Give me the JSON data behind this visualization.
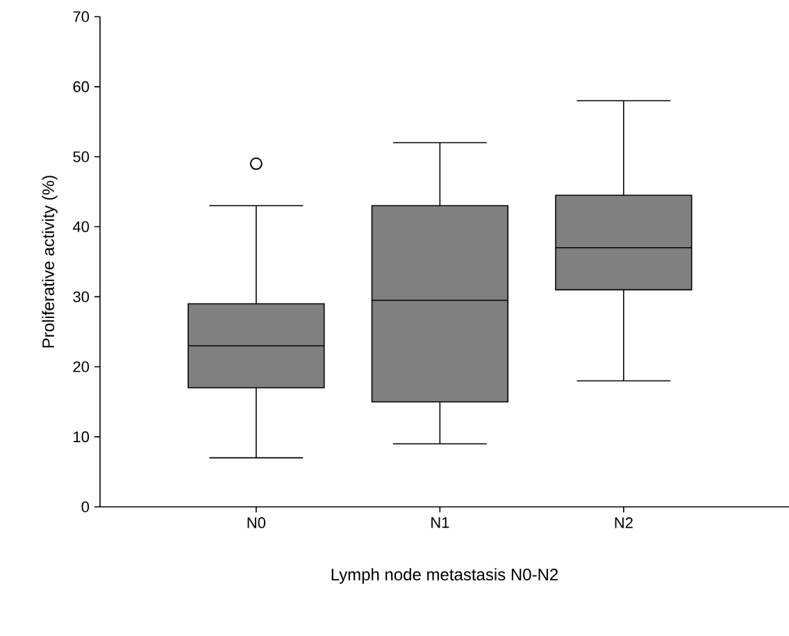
{
  "chart_data": {
    "type": "box",
    "xlabel": "Lymph node metastasis N0-N2",
    "ylabel": "Proliferative activity (%)",
    "categories": [
      "N0",
      "N1",
      "N2"
    ],
    "color": "#808080",
    "marker": "circle",
    "boxes": [
      {
        "low": 7,
        "q1": 17,
        "median": 23,
        "q3": 29,
        "high": 43,
        "outliers": [
          49
        ]
      },
      {
        "low": 9,
        "q1": 15,
        "median": 29.5,
        "q3": 43,
        "high": 52
      },
      {
        "low": 18,
        "q1": 31,
        "median": 37,
        "q3": 44.5,
        "high": 58
      }
    ],
    "ylim": [
      0,
      70
    ],
    "yticks": [
      0,
      10,
      20,
      30,
      40,
      50,
      60,
      70
    ]
  }
}
